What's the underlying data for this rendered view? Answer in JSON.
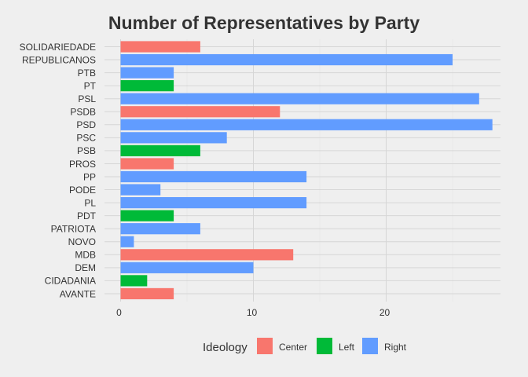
{
  "chart_data": {
    "type": "bar",
    "orientation": "horizontal",
    "title": "Number of Representatives by Party",
    "xlabel": "",
    "ylabel": "",
    "xlim": [
      0,
      28
    ],
    "xticks": [
      "0",
      "10",
      "20"
    ],
    "grid": true,
    "legend_position": "bottom",
    "legend_title": "Ideology",
    "groups": [
      {
        "name": "Center",
        "color": "#F8766D"
      },
      {
        "name": "Left",
        "color": "#00BA38"
      },
      {
        "name": "Right",
        "color": "#619CFF"
      }
    ],
    "categories": [
      "SOLIDARIEDADE",
      "REPUBLICANOS",
      "PTB",
      "PT",
      "PSL",
      "PSDB",
      "PSD",
      "PSC",
      "PSB",
      "PROS",
      "PP",
      "PODE",
      "PL",
      "PDT",
      "PATRIOTA",
      "NOVO",
      "MDB",
      "DEM",
      "CIDADANIA",
      "AVANTE"
    ],
    "values": [
      6,
      25,
      4,
      4,
      27,
      12,
      28,
      8,
      6,
      4,
      14,
      3,
      14,
      4,
      6,
      1,
      13,
      10,
      2,
      4
    ],
    "ideology": [
      "Center",
      "Right",
      "Right",
      "Left",
      "Right",
      "Center",
      "Right",
      "Right",
      "Left",
      "Center",
      "Right",
      "Right",
      "Right",
      "Left",
      "Right",
      "Right",
      "Center",
      "Right",
      "Left",
      "Center"
    ]
  }
}
